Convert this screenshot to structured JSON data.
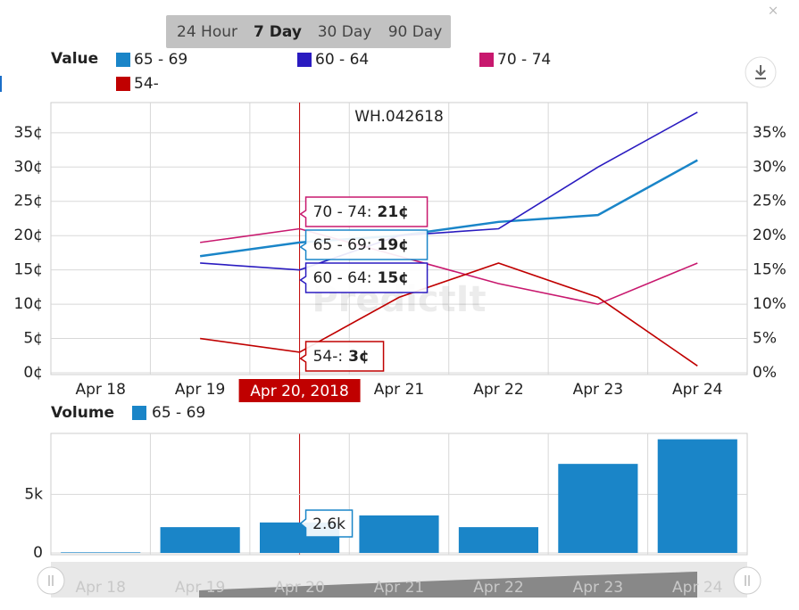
{
  "range_buttons": [
    "24 Hour",
    "7 Day",
    "30 Day",
    "90 Day"
  ],
  "selected_range": 1,
  "chart_data": [
    {
      "type": "line",
      "title": "WH.042618",
      "legend_title": "Value",
      "watermark": "PredictIt",
      "categories": [
        "Apr 18",
        "Apr 19",
        "Apr 20",
        "Apr 21",
        "Apr 22",
        "Apr 23",
        "Apr 24"
      ],
      "crosshair_index": 2,
      "crosshair_label": "Apr 20, 2018",
      "tooltip_separator": ":",
      "series": [
        {
          "name": "65 - 69",
          "color": "#1a85c8",
          "values": [
            null,
            17,
            19,
            20,
            22,
            23,
            31
          ],
          "value_labels": [
            null,
            null,
            "19¢",
            null,
            null,
            null,
            null
          ]
        },
        {
          "name": "60 - 64",
          "color": "#2a1bc0",
          "values": [
            null,
            16,
            15,
            20,
            21,
            30,
            38
          ],
          "value_labels": [
            null,
            null,
            "15¢",
            null,
            null,
            null,
            null
          ]
        },
        {
          "name": "70 - 74",
          "color": "#c8186e",
          "values": [
            null,
            19,
            21,
            17,
            13,
            10,
            16
          ],
          "value_labels": [
            null,
            null,
            "21¢",
            null,
            null,
            null,
            null
          ]
        },
        {
          "name": "54-",
          "color": "#c00000",
          "values": [
            null,
            5,
            3,
            11,
            16,
            11,
            1
          ],
          "value_labels": [
            null,
            null,
            "3¢",
            null,
            null,
            null,
            null
          ]
        }
      ],
      "ylim": [
        0,
        39.4
      ],
      "yticks": [
        {
          "value": 0,
          "label": "0¢"
        },
        {
          "value": 5,
          "label": "5¢"
        },
        {
          "value": 10,
          "label": "10¢"
        },
        {
          "value": 15,
          "label": "15¢"
        },
        {
          "value": 20,
          "label": "20¢"
        },
        {
          "value": 25,
          "label": "25¢"
        },
        {
          "value": 30,
          "label": "30¢"
        },
        {
          "value": 35,
          "label": "35¢"
        }
      ],
      "y2lim": [
        0,
        39.4
      ],
      "y2ticks": [
        {
          "value": 0,
          "label": "0%"
        },
        {
          "value": 5,
          "label": "5%"
        },
        {
          "value": 10,
          "label": "10%"
        },
        {
          "value": 15,
          "label": "15%"
        },
        {
          "value": 20,
          "label": "20%"
        },
        {
          "value": 25,
          "label": "25%"
        },
        {
          "value": 30,
          "label": "30%"
        },
        {
          "value": 35,
          "label": "35%"
        }
      ],
      "grid": true
    },
    {
      "type": "bar",
      "legend_title": "Volume",
      "categories": [
        "Apr 18",
        "Apr 19",
        "Apr 20",
        "Apr 21",
        "Apr 22",
        "Apr 23",
        "Apr 24"
      ],
      "series": [
        {
          "name": "65 - 69",
          "color": "#1a85c8",
          "values": [
            50,
            2200,
            2600,
            3200,
            2200,
            7600,
            9700
          ],
          "value_labels": [
            null,
            null,
            "2.6k",
            null,
            null,
            null,
            null
          ]
        }
      ],
      "ylim": [
        0,
        10200
      ],
      "yticks": [
        0,
        {
          "value": 5000,
          "label": "5k"
        }
      ],
      "grid": true
    }
  ]
}
